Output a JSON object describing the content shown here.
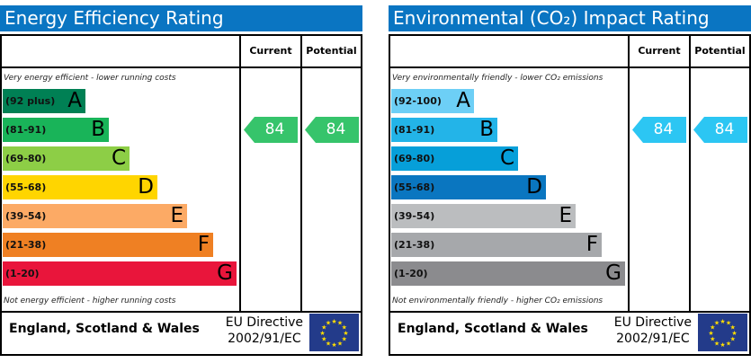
{
  "charts": [
    {
      "title": "Energy Efficiency Rating",
      "header": {
        "current": "Current",
        "potential": "Potential"
      },
      "top_note": "Very energy efficient - lower running costs",
      "bottom_note": "Not energy efficient - higher running costs",
      "bands": [
        {
          "range": "(92 plus)",
          "letter": "A",
          "color": "#008054"
        },
        {
          "range": "(81-91)",
          "letter": "B",
          "color": "#19b459"
        },
        {
          "range": "(69-80)",
          "letter": "C",
          "color": "#8dce46"
        },
        {
          "range": "(55-68)",
          "letter": "D",
          "color": "#ffd500"
        },
        {
          "range": "(39-54)",
          "letter": "E",
          "color": "#fcaa65"
        },
        {
          "range": "(21-38)",
          "letter": "F",
          "color": "#ef8023"
        },
        {
          "range": "(1-20)",
          "letter": "G",
          "color": "#e9153b"
        }
      ],
      "current": 84,
      "potential": 84,
      "arrow_color": "#36c46b",
      "footer": "England, Scotland & Wales",
      "directive": [
        "EU Directive",
        "2002/91/EC"
      ]
    },
    {
      "title": "Environmental (CO₂) Impact Rating",
      "header": {
        "current": "Current",
        "potential": "Potential"
      },
      "top_note": "Very environmentally friendly - lower CO₂ emissions",
      "bottom_note": "Not environmentally friendly - higher CO₂ emissions",
      "bands": [
        {
          "range": "(92-100)",
          "letter": "A",
          "color": "#6dcff6"
        },
        {
          "range": "(81-91)",
          "letter": "B",
          "color": "#23b4e8"
        },
        {
          "range": "(69-80)",
          "letter": "C",
          "color": "#069fd9"
        },
        {
          "range": "(55-68)",
          "letter": "D",
          "color": "#0a76c0"
        },
        {
          "range": "(39-54)",
          "letter": "E",
          "color": "#bbbdbf"
        },
        {
          "range": "(21-38)",
          "letter": "F",
          "color": "#a6a8ab"
        },
        {
          "range": "(1-20)",
          "letter": "G",
          "color": "#8b8b8e"
        }
      ],
      "current": 84,
      "potential": 84,
      "arrow_color": "#2cc6f3",
      "footer": "England, Scotland & Wales",
      "directive": [
        "EU Directive",
        "2002/91/EC"
      ]
    }
  ]
}
